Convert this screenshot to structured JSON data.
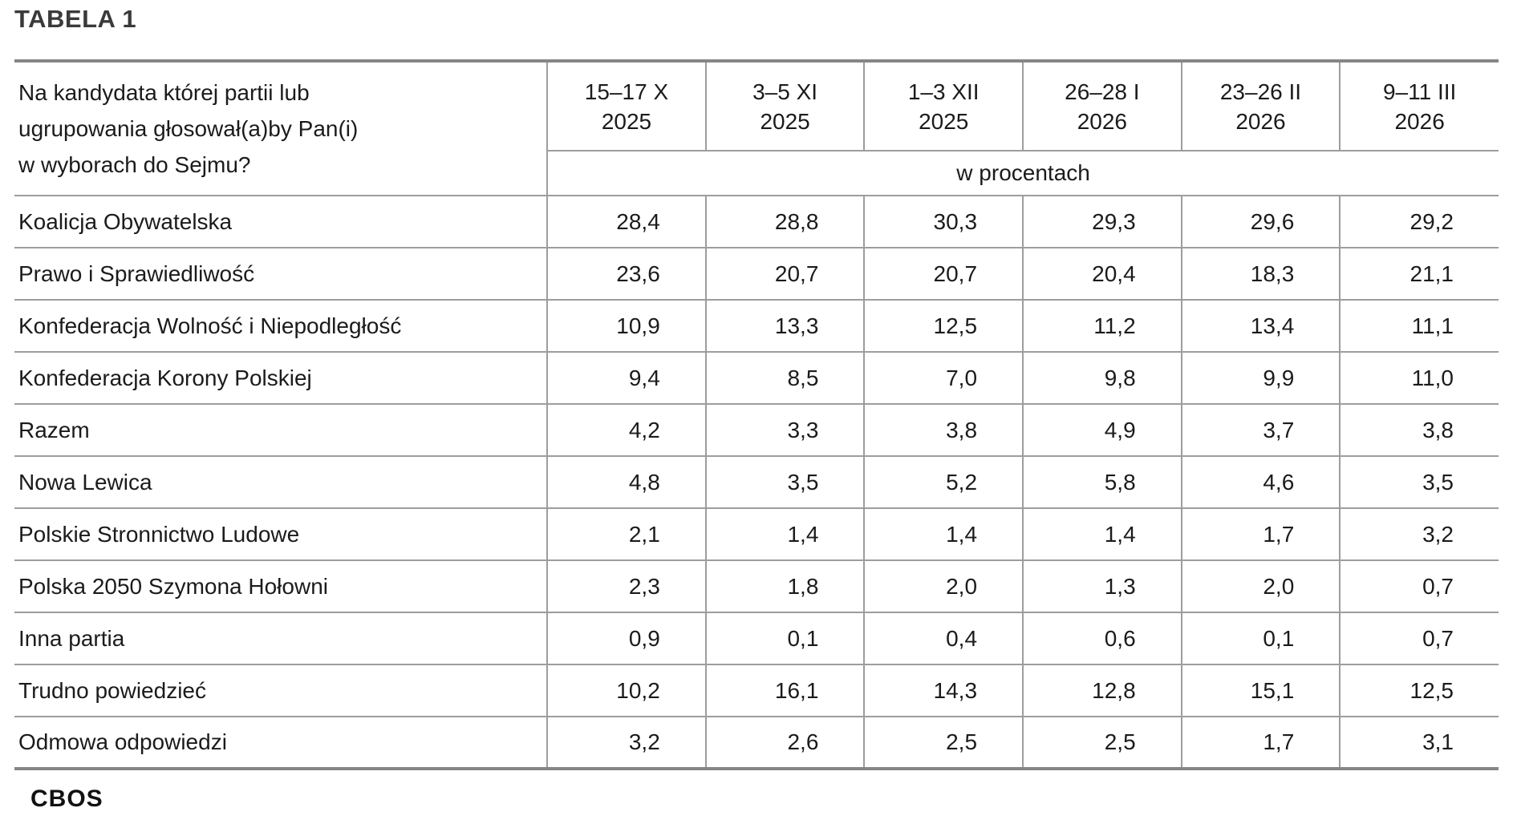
{
  "page": {
    "title": "TABELA 1",
    "footer": "CBOS"
  },
  "table": {
    "question": {
      "line1": "Na kandydata której partii lub",
      "line2": "ugrupowania głosował(a)by Pan(i)",
      "line3": "w wyborach do Sejmu?"
    },
    "subheader": "w procentach",
    "columns": [
      {
        "period": "15–17 X",
        "year": "2025"
      },
      {
        "period": "3–5 XI",
        "year": "2025"
      },
      {
        "period": "1–3 XII",
        "year": "2025"
      },
      {
        "period": "26–28 I",
        "year": "2026"
      },
      {
        "period": "23–26 II",
        "year": "2026"
      },
      {
        "period": "9–11 III",
        "year": "2026"
      }
    ],
    "rows": [
      {
        "label": "Koalicja Obywatelska",
        "values": [
          "28,4",
          "28,8",
          "30,3",
          "29,3",
          "29,6",
          "29,2"
        ]
      },
      {
        "label": "Prawo i Sprawiedliwość",
        "values": [
          "23,6",
          "20,7",
          "20,7",
          "20,4",
          "18,3",
          "21,1"
        ]
      },
      {
        "label": "Konfederacja Wolność i Niepodległość",
        "values": [
          "10,9",
          "13,3",
          "12,5",
          "11,2",
          "13,4",
          "11,1"
        ]
      },
      {
        "label": "Konfederacja Korony Polskiej",
        "values": [
          "9,4",
          "8,5",
          "7,0",
          "9,8",
          "9,9",
          "11,0"
        ]
      },
      {
        "label": "Razem",
        "values": [
          "4,2",
          "3,3",
          "3,8",
          "4,9",
          "3,7",
          "3,8"
        ]
      },
      {
        "label": "Nowa Lewica",
        "values": [
          "4,8",
          "3,5",
          "5,2",
          "5,8",
          "4,6",
          "3,5"
        ]
      },
      {
        "label": "Polskie Stronnictwo Ludowe",
        "values": [
          "2,1",
          "1,4",
          "1,4",
          "1,4",
          "1,7",
          "3,2"
        ]
      },
      {
        "label": "Polska 2050 Szymona Hołowni",
        "values": [
          "2,3",
          "1,8",
          "2,0",
          "1,3",
          "2,0",
          "0,7"
        ]
      },
      {
        "label": "Inna partia",
        "values": [
          "0,9",
          "0,1",
          "0,4",
          "0,6",
          "0,1",
          "0,7"
        ]
      },
      {
        "label": "Trudno powiedzieć",
        "values": [
          "10,2",
          "16,1",
          "14,3",
          "12,8",
          "15,1",
          "12,5"
        ]
      },
      {
        "label": "Odmowa odpowiedzi",
        "values": [
          "3,2",
          "2,6",
          "2,5",
          "2,5",
          "1,7",
          "3,1"
        ]
      }
    ],
    "colors": {
      "border_thick": "#868686",
      "border_thin": "#9d9d9d",
      "text": "#1b1b1b",
      "title": "#3a3a3a"
    }
  }
}
